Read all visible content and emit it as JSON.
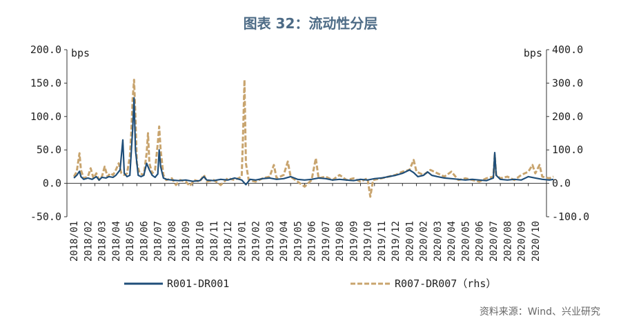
{
  "title": "图表 32：流动性分层",
  "source": "资料来源：Wind、兴业研究",
  "colors": {
    "series1": "#1f4e79",
    "series2": "#c8a46e",
    "title": "#4d6b86"
  },
  "chart_data": {
    "type": "line",
    "left_unit": "bps",
    "right_unit": "bps",
    "left_ylim": [
      -50,
      200
    ],
    "right_ylim": [
      -100,
      400
    ],
    "left_ticks": [
      "200.0",
      "150.0",
      "100.0",
      "50.0",
      "0.0",
      "-50.0"
    ],
    "right_ticks": [
      "400.0",
      "300.0",
      "200.0",
      "100.0",
      "0.0",
      "-100.0"
    ],
    "x_labels": [
      "2018/01",
      "2018/02",
      "2018/03",
      "2018/04",
      "2018/05",
      "2018/06",
      "2018/07",
      "2018/08",
      "2018/09",
      "2018/10",
      "2018/11",
      "2018/12",
      "2019/01",
      "2019/02",
      "2019/03",
      "2019/04",
      "2019/05",
      "2019/06",
      "2019/07",
      "2019/08",
      "2019/09",
      "2019/10",
      "2019/11",
      "2019/12",
      "2020/01",
      "2020/02",
      "2020/03",
      "2020/04",
      "2020/05",
      "2020/06",
      "2020/07",
      "2020/08",
      "2020/09",
      "2020/10"
    ],
    "legend": [
      "R001-DR001",
      "R007-DR007（rhs）"
    ],
    "series": [
      {
        "name": "R001-DR001",
        "axis": "left",
        "style": "solid",
        "points": [
          [
            0.0,
            8
          ],
          [
            0.2,
            12
          ],
          [
            0.4,
            18
          ],
          [
            0.5,
            10
          ],
          [
            0.7,
            6
          ],
          [
            1.0,
            8
          ],
          [
            1.3,
            6
          ],
          [
            1.6,
            10
          ],
          [
            1.8,
            5
          ],
          [
            2.0,
            9
          ],
          [
            2.3,
            8
          ],
          [
            2.5,
            10
          ],
          [
            2.8,
            9
          ],
          [
            3.0,
            12
          ],
          [
            3.3,
            20
          ],
          [
            3.5,
            65
          ],
          [
            3.6,
            15
          ],
          [
            3.8,
            10
          ],
          [
            4.0,
            12
          ],
          [
            4.2,
            80
          ],
          [
            4.3,
            128
          ],
          [
            4.4,
            50
          ],
          [
            4.6,
            12
          ],
          [
            4.8,
            10
          ],
          [
            5.0,
            12
          ],
          [
            5.2,
            30
          ],
          [
            5.4,
            20
          ],
          [
            5.6,
            12
          ],
          [
            5.8,
            9
          ],
          [
            6.0,
            14
          ],
          [
            6.1,
            50
          ],
          [
            6.2,
            25
          ],
          [
            6.4,
            8
          ],
          [
            6.6,
            6
          ],
          [
            7.0,
            5
          ],
          [
            7.5,
            4
          ],
          [
            8.0,
            5
          ],
          [
            8.5,
            3
          ],
          [
            9.0,
            4
          ],
          [
            9.3,
            10
          ],
          [
            9.5,
            5
          ],
          [
            10.0,
            4
          ],
          [
            10.5,
            6
          ],
          [
            11.0,
            5
          ],
          [
            11.5,
            8
          ],
          [
            12.0,
            5
          ],
          [
            12.3,
            -2
          ],
          [
            12.6,
            6
          ],
          [
            13.0,
            5
          ],
          [
            13.5,
            7
          ],
          [
            14.0,
            8
          ],
          [
            14.5,
            6
          ],
          [
            15.0,
            7
          ],
          [
            15.5,
            10
          ],
          [
            16.0,
            6
          ],
          [
            16.5,
            5
          ],
          [
            17.0,
            6
          ],
          [
            17.5,
            8
          ],
          [
            18.0,
            7
          ],
          [
            18.5,
            5
          ],
          [
            19.0,
            6
          ],
          [
            19.5,
            5
          ],
          [
            20.0,
            4
          ],
          [
            20.5,
            6
          ],
          [
            21.0,
            5
          ],
          [
            21.5,
            7
          ],
          [
            22.0,
            8
          ],
          [
            22.5,
            10
          ],
          [
            23.0,
            12
          ],
          [
            23.5,
            15
          ],
          [
            24.0,
            20
          ],
          [
            24.3,
            16
          ],
          [
            24.6,
            10
          ],
          [
            25.0,
            12
          ],
          [
            25.3,
            17
          ],
          [
            25.6,
            12
          ],
          [
            26.0,
            10
          ],
          [
            26.5,
            8
          ],
          [
            27.0,
            7
          ],
          [
            27.5,
            6
          ],
          [
            28.0,
            5
          ],
          [
            28.5,
            6
          ],
          [
            29.0,
            5
          ],
          [
            29.5,
            4
          ],
          [
            30.0,
            8
          ],
          [
            30.1,
            46
          ],
          [
            30.2,
            12
          ],
          [
            30.5,
            6
          ],
          [
            31.0,
            5
          ],
          [
            31.5,
            6
          ],
          [
            32.0,
            5
          ],
          [
            32.5,
            10
          ],
          [
            33.0,
            8
          ],
          [
            33.5,
            6
          ],
          [
            34.0,
            5
          ],
          [
            34.3,
            6
          ]
        ]
      },
      {
        "name": "R007-DR007（rhs）",
        "axis": "right",
        "style": "dashed",
        "points": [
          [
            0.0,
            20
          ],
          [
            0.2,
            35
          ],
          [
            0.4,
            90
          ],
          [
            0.5,
            40
          ],
          [
            0.7,
            15
          ],
          [
            1.0,
            20
          ],
          [
            1.2,
            45
          ],
          [
            1.4,
            15
          ],
          [
            1.6,
            30
          ],
          [
            1.8,
            10
          ],
          [
            2.0,
            20
          ],
          [
            2.2,
            50
          ],
          [
            2.4,
            20
          ],
          [
            2.6,
            30
          ],
          [
            2.8,
            25
          ],
          [
            3.0,
            40
          ],
          [
            3.2,
            60
          ],
          [
            3.4,
            30
          ],
          [
            3.6,
            25
          ],
          [
            3.8,
            30
          ],
          [
            4.0,
            80
          ],
          [
            4.1,
            150
          ],
          [
            4.2,
            250
          ],
          [
            4.3,
            310
          ],
          [
            4.4,
            200
          ],
          [
            4.5,
            60
          ],
          [
            4.7,
            30
          ],
          [
            5.0,
            25
          ],
          [
            5.2,
            90
          ],
          [
            5.3,
            150
          ],
          [
            5.4,
            60
          ],
          [
            5.6,
            30
          ],
          [
            5.8,
            40
          ],
          [
            6.0,
            120
          ],
          [
            6.1,
            170
          ],
          [
            6.2,
            100
          ],
          [
            6.4,
            25
          ],
          [
            6.6,
            10
          ],
          [
            7.0,
            15
          ],
          [
            7.3,
            -5
          ],
          [
            7.6,
            10
          ],
          [
            8.0,
            5
          ],
          [
            8.3,
            -8
          ],
          [
            8.6,
            10
          ],
          [
            9.0,
            5
          ],
          [
            9.3,
            25
          ],
          [
            9.5,
            5
          ],
          [
            10.0,
            10
          ],
          [
            10.5,
            -5
          ],
          [
            11.0,
            15
          ],
          [
            11.5,
            10
          ],
          [
            12.0,
            20
          ],
          [
            12.1,
            150
          ],
          [
            12.2,
            310
          ],
          [
            12.3,
            60
          ],
          [
            12.5,
            10
          ],
          [
            13.0,
            5
          ],
          [
            13.5,
            15
          ],
          [
            14.0,
            20
          ],
          [
            14.3,
            55
          ],
          [
            14.5,
            15
          ],
          [
            15.0,
            25
          ],
          [
            15.3,
            65
          ],
          [
            15.5,
            20
          ],
          [
            16.0,
            5
          ],
          [
            16.5,
            -10
          ],
          [
            17.0,
            10
          ],
          [
            17.3,
            75
          ],
          [
            17.5,
            15
          ],
          [
            18.0,
            20
          ],
          [
            18.5,
            10
          ],
          [
            19.0,
            25
          ],
          [
            19.5,
            10
          ],
          [
            20.0,
            15
          ],
          [
            20.5,
            5
          ],
          [
            21.0,
            15
          ],
          [
            21.2,
            -40
          ],
          [
            21.4,
            10
          ],
          [
            22.0,
            15
          ],
          [
            22.5,
            20
          ],
          [
            23.0,
            25
          ],
          [
            23.5,
            35
          ],
          [
            24.0,
            40
          ],
          [
            24.3,
            70
          ],
          [
            24.5,
            35
          ],
          [
            25.0,
            25
          ],
          [
            25.5,
            40
          ],
          [
            26.0,
            30
          ],
          [
            26.5,
            20
          ],
          [
            27.0,
            35
          ],
          [
            27.5,
            10
          ],
          [
            28.0,
            15
          ],
          [
            28.5,
            10
          ],
          [
            29.0,
            5
          ],
          [
            29.5,
            15
          ],
          [
            30.0,
            20
          ],
          [
            30.1,
            85
          ],
          [
            30.2,
            25
          ],
          [
            30.5,
            15
          ],
          [
            31.0,
            20
          ],
          [
            31.5,
            10
          ],
          [
            32.0,
            25
          ],
          [
            32.5,
            35
          ],
          [
            32.8,
            55
          ],
          [
            33.0,
            30
          ],
          [
            33.3,
            55
          ],
          [
            33.5,
            20
          ],
          [
            34.0,
            15
          ],
          [
            34.3,
            20
          ]
        ]
      }
    ]
  }
}
